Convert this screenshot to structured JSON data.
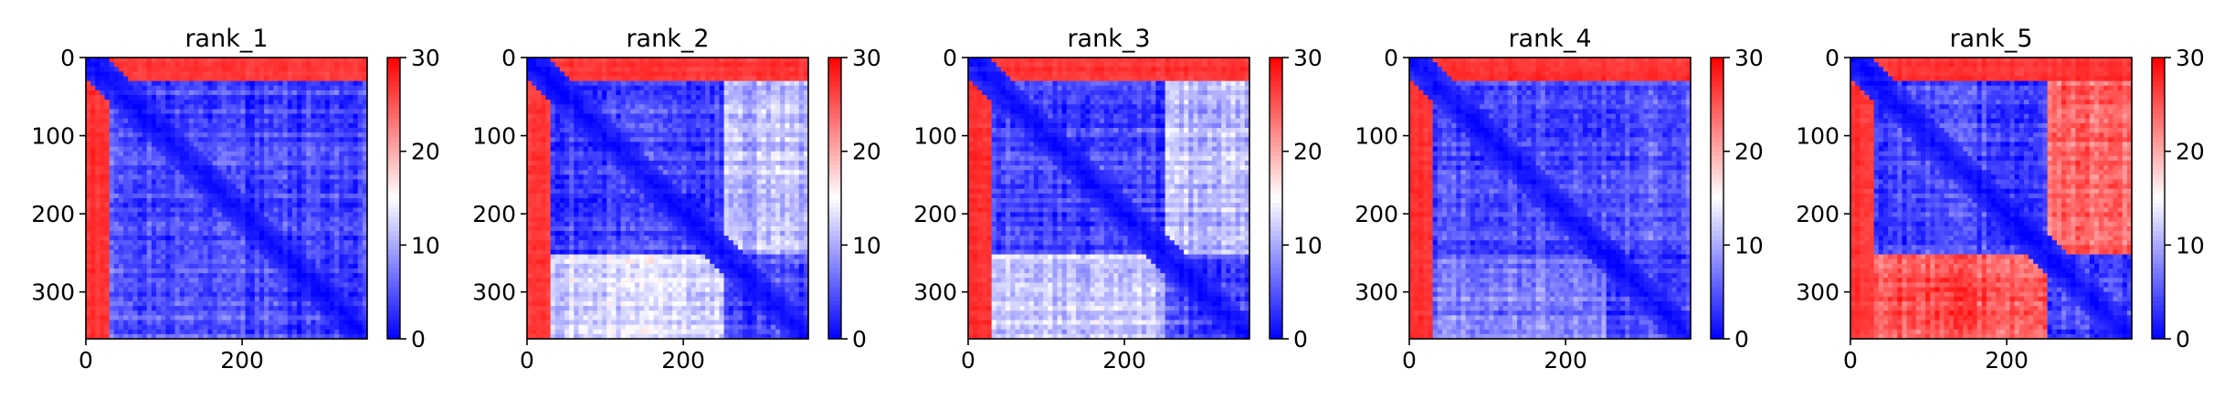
{
  "colors": {
    "low": "#0000ff",
    "mid": "#ffffff",
    "high": "#ff0000",
    "axis": "#000000"
  },
  "chart_data": [
    {
      "type": "heatmap",
      "title": "rank_1",
      "xlim": [
        0,
        360
      ],
      "ylim": [
        360,
        0
      ],
      "xticks": [
        0,
        200
      ],
      "yticks": [
        0,
        100,
        200,
        300
      ],
      "colorbar": {
        "range": [
          0,
          30
        ],
        "ticks": [
          0,
          10,
          20,
          30
        ],
        "colormap": "bwr"
      },
      "domains": [
        [
          0,
          28
        ],
        [
          28,
          250
        ],
        [
          250,
          360
        ]
      ],
      "block_values": [
        [
          5,
          27,
          27
        ],
        [
          27,
          4,
          4
        ],
        [
          27,
          5,
          4
        ]
      ]
    },
    {
      "type": "heatmap",
      "title": "rank_2",
      "xlim": [
        0,
        360
      ],
      "ylim": [
        360,
        0
      ],
      "xticks": [
        0,
        200
      ],
      "yticks": [
        0,
        100,
        200,
        300
      ],
      "colorbar": {
        "range": [
          0,
          30
        ],
        "ticks": [
          0,
          10,
          20,
          30
        ],
        "colormap": "bwr"
      },
      "domains": [
        [
          0,
          28
        ],
        [
          28,
          250
        ],
        [
          250,
          360
        ]
      ],
      "block_values": [
        [
          5,
          27,
          27
        ],
        [
          27,
          4,
          11
        ],
        [
          27,
          13,
          4
        ]
      ]
    },
    {
      "type": "heatmap",
      "title": "rank_3",
      "xlim": [
        0,
        360
      ],
      "ylim": [
        360,
        0
      ],
      "xticks": [
        0,
        200
      ],
      "yticks": [
        0,
        100,
        200,
        300
      ],
      "colorbar": {
        "range": [
          0,
          30
        ],
        "ticks": [
          0,
          10,
          20,
          30
        ],
        "colormap": "bwr"
      },
      "domains": [
        [
          0,
          28
        ],
        [
          28,
          250
        ],
        [
          250,
          360
        ]
      ],
      "block_values": [
        [
          5,
          27,
          27
        ],
        [
          27,
          4,
          11
        ],
        [
          27,
          12,
          4
        ]
      ]
    },
    {
      "type": "heatmap",
      "title": "rank_4",
      "xlim": [
        0,
        360
      ],
      "ylim": [
        360,
        0
      ],
      "xticks": [
        0,
        200
      ],
      "yticks": [
        0,
        100,
        200,
        300
      ],
      "colorbar": {
        "range": [
          0,
          30
        ],
        "ticks": [
          0,
          10,
          20,
          30
        ],
        "colormap": "bwr"
      },
      "domains": [
        [
          0,
          28
        ],
        [
          28,
          250
        ],
        [
          250,
          360
        ]
      ],
      "block_values": [
        [
          5,
          27,
          27
        ],
        [
          27,
          4,
          5
        ],
        [
          27,
          7,
          4
        ]
      ]
    },
    {
      "type": "heatmap",
      "title": "rank_5",
      "xlim": [
        0,
        360
      ],
      "ylim": [
        360,
        0
      ],
      "xticks": [
        0,
        200
      ],
      "yticks": [
        0,
        100,
        200,
        300
      ],
      "colorbar": {
        "range": [
          0,
          30
        ],
        "ticks": [
          0,
          10,
          20,
          30
        ],
        "colormap": "bwr"
      },
      "domains": [
        [
          0,
          28
        ],
        [
          28,
          250
        ],
        [
          250,
          360
        ]
      ],
      "block_values": [
        [
          5,
          27,
          27
        ],
        [
          27,
          4,
          24
        ],
        [
          27,
          25,
          4
        ]
      ]
    }
  ]
}
